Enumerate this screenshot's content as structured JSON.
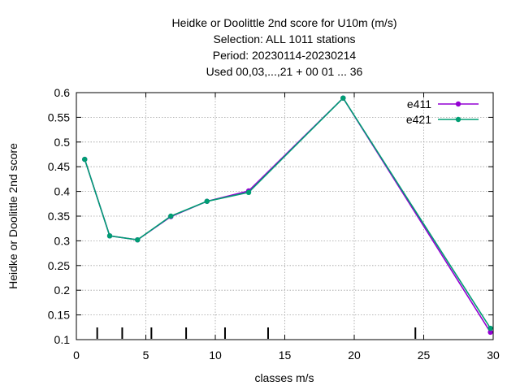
{
  "chart_data": {
    "type": "line",
    "title_lines": [
      "Heidke or Doolittle 2nd score  for U10m (m/s)",
      "Selection: ALL   1011 stations",
      "Period: 20230114-20230214",
      "Used  00,03,...,21  + 00 01 ... 36"
    ],
    "xlabel": "classes m/s",
    "ylabel": "Heidke or Doolittle 2nd score",
    "xlim": [
      0,
      30
    ],
    "ylim": [
      0.1,
      0.6
    ],
    "xticks": [
      0,
      5,
      10,
      15,
      20,
      25,
      30
    ],
    "yticks": [
      0.1,
      0.15,
      0.2,
      0.25,
      0.3,
      0.35,
      0.4,
      0.45,
      0.5,
      0.55,
      0.6
    ],
    "grid": true,
    "legend_position": "top-right",
    "class_bounds": [
      1.5,
      3.3,
      5.4,
      7.9,
      10.7,
      13.8,
      24.4
    ],
    "series": [
      {
        "name": "e411",
        "color": "#9400d3",
        "x": [
          0.6,
          2.4,
          4.4,
          6.8,
          9.4,
          12.4,
          19.2,
          29.8
        ],
        "y": [
          0.465,
          0.31,
          0.302,
          0.349,
          0.38,
          0.401,
          0.589,
          0.115
        ]
      },
      {
        "name": "e421",
        "color": "#009e73",
        "x": [
          0.6,
          2.4,
          4.4,
          6.8,
          9.4,
          12.4,
          19.2,
          29.8
        ],
        "y": [
          0.465,
          0.31,
          0.302,
          0.35,
          0.38,
          0.398,
          0.589,
          0.123
        ]
      }
    ]
  }
}
